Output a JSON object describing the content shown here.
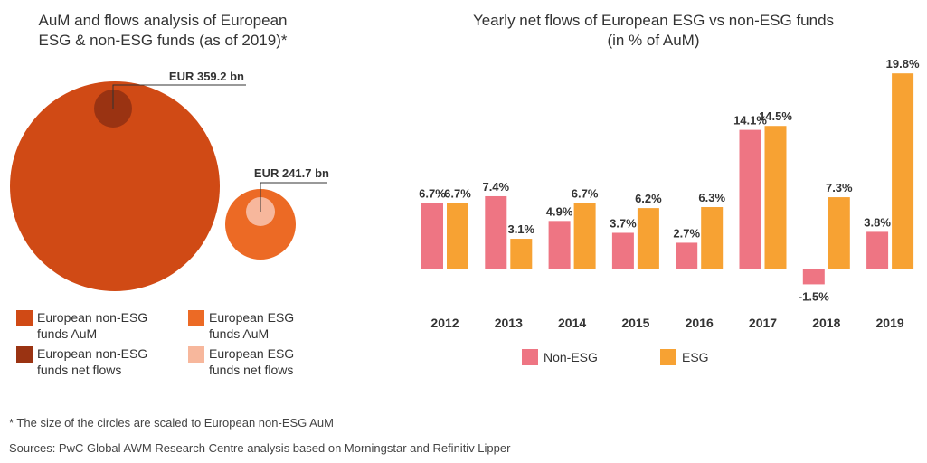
{
  "colors": {
    "non_esg_aum": "#d04a15",
    "non_esg_flows": "#9a3312",
    "esg_aum": "#ec6a25",
    "esg_flows": "#f7b79c",
    "bar_non_esg": "#ee7583",
    "bar_esg": "#f7a233"
  },
  "left_chart": {
    "title_line1": "AuM and flows analysis of European",
    "title_line2": "ESG & non-ESG funds (as of 2019)*",
    "callout_non_esg_flows": "EUR 359.2 bn",
    "callout_esg_flows": "EUR 241.7 bn",
    "legend": [
      {
        "label": "European non-ESG funds AuM",
        "color_key": "non_esg_aum"
      },
      {
        "label": "European ESG funds AuM",
        "color_key": "esg_aum"
      },
      {
        "label": "European non-ESG funds net flows",
        "color_key": "non_esg_flows"
      },
      {
        "label": "European ESG funds net flows",
        "color_key": "esg_flows"
      }
    ]
  },
  "chart_data": {
    "type": "bar",
    "title": "Yearly net flows of European ESG vs non-ESG funds (in % of AuM)",
    "title_line1": "Yearly net flows of European ESG vs non-ESG funds",
    "title_line2": "(in % of AuM)",
    "categories": [
      "2012",
      "2013",
      "2014",
      "2015",
      "2016",
      "2017",
      "2018",
      "2019"
    ],
    "series": [
      {
        "name": "Non-ESG",
        "color_key": "bar_non_esg",
        "values": [
          6.7,
          7.4,
          4.9,
          3.7,
          2.7,
          14.1,
          -1.5,
          3.8
        ],
        "labels": [
          "6.7%",
          "7.4%",
          "4.9%",
          "3.7%",
          "2.7%",
          "14.1%",
          "-1.5%",
          "3.8%"
        ]
      },
      {
        "name": "ESG",
        "color_key": "bar_esg",
        "values": [
          6.7,
          3.1,
          6.7,
          6.2,
          6.3,
          14.5,
          7.3,
          19.8
        ],
        "labels": [
          "6.7%",
          "3.1%",
          "6.7%",
          "6.2%",
          "6.3%",
          "14.5%",
          "7.3%",
          "19.8%"
        ]
      }
    ],
    "ylim": [
      -1.5,
      19.8
    ],
    "grid": false,
    "legend_position": "bottom"
  },
  "footnotes": {
    "note": "* The size of the circles are scaled to European non-ESG AuM",
    "sources": "Sources: PwC Global AWM Research Centre analysis based on Morningstar and Refinitiv Lipper"
  }
}
